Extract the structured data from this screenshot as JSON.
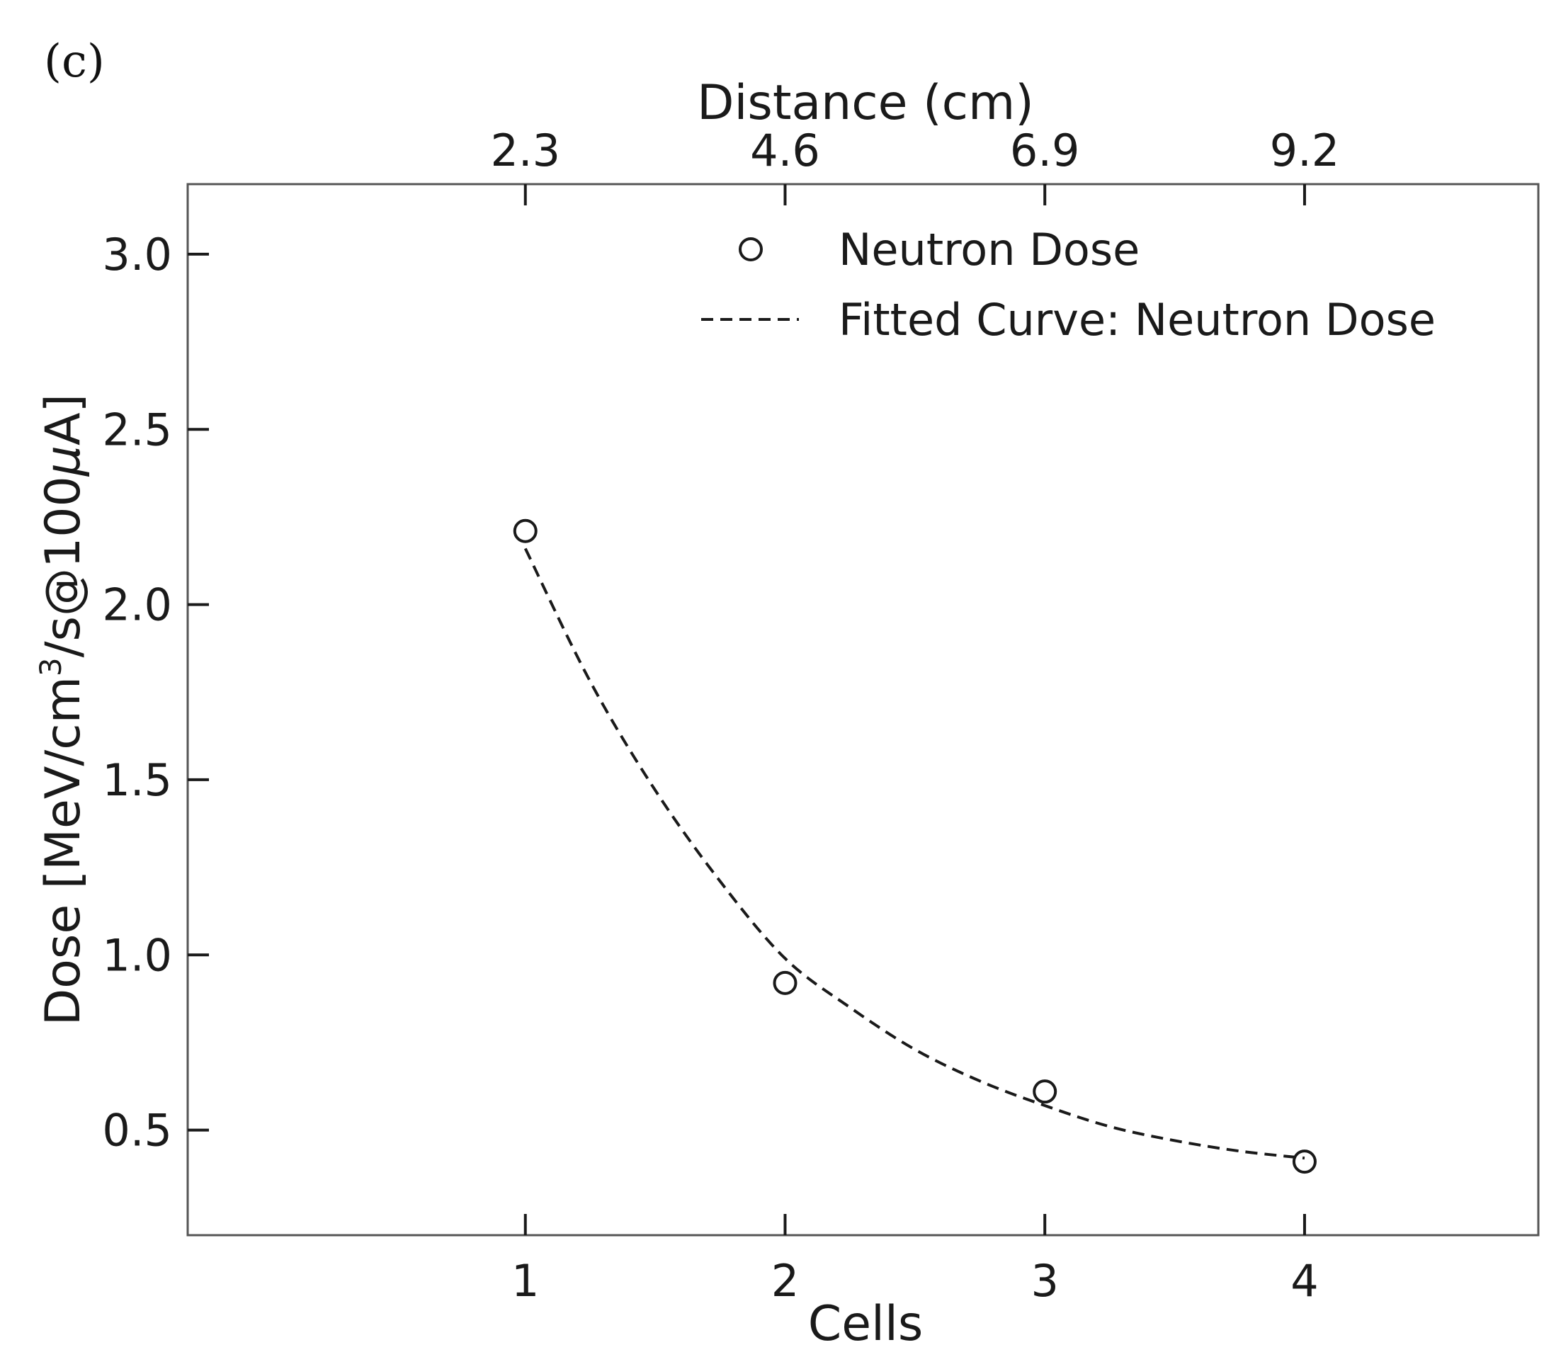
{
  "panel_label": "(c)",
  "chart_data": {
    "type": "scatter",
    "xlabel": "Cells",
    "ylabel": "Dose  [MeV/cm³/s@100μA]",
    "ylabel_parts": {
      "prefix": "Dose  [MeV/cm",
      "superscript": "3",
      "suffix": "/s@100",
      "mu": "μ",
      "tail": "A]"
    },
    "x_top_label": "Distance (cm)",
    "xlim": [
      -0.3,
      4.9
    ],
    "ylim": [
      0.2,
      3.2
    ],
    "x_ticks": [
      1,
      2,
      3,
      4
    ],
    "x_tick_labels": [
      "1",
      "2",
      "3",
      "4"
    ],
    "x_top_ticks": [
      1,
      2,
      3,
      4
    ],
    "x_top_tick_labels": [
      "2.3",
      "4.6",
      "6.9",
      "9.2"
    ],
    "y_ticks": [
      0.5,
      1.0,
      1.5,
      2.0,
      2.5,
      3.0
    ],
    "y_tick_labels": [
      "0.5",
      "1.0",
      "1.5",
      "2.0",
      "2.5",
      "3.0"
    ],
    "grid": false,
    "legend_position": "top-right",
    "series": [
      {
        "name": "Neutron Dose",
        "kind": "markers",
        "marker": "open-circle",
        "color": "#1a1a1a",
        "x": [
          1,
          2,
          3,
          4
        ],
        "y": [
          2.21,
          0.92,
          0.61,
          0.41
        ]
      },
      {
        "name": "Fitted Curve: Neutron Dose",
        "kind": "dashed-line",
        "color": "#1a1a1a",
        "x": [
          1.0,
          1.25,
          1.5,
          1.75,
          2.0,
          2.25,
          2.5,
          2.75,
          3.0,
          3.25,
          3.5,
          3.75,
          4.0
        ],
        "y": [
          2.16,
          1.78,
          1.47,
          1.21,
          0.99,
          0.85,
          0.73,
          0.64,
          0.57,
          0.51,
          0.47,
          0.44,
          0.42
        ]
      }
    ]
  }
}
